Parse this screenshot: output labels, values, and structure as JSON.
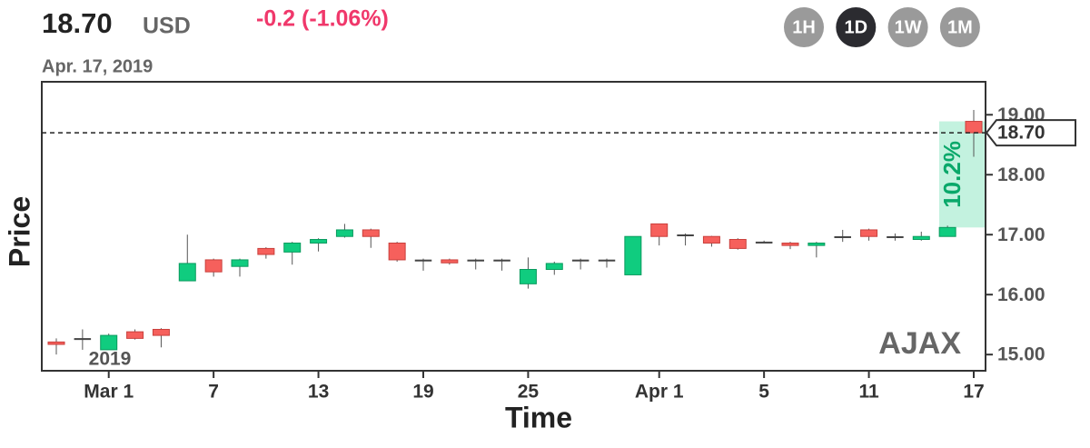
{
  "header": {
    "price": "18.70",
    "currency": "USD",
    "change": "-0.2 (-1.06%)",
    "date": "Apr. 17, 2019",
    "buttons": [
      "1H",
      "1D",
      "1W",
      "1M"
    ],
    "active_button": "1D"
  },
  "chart_data": {
    "type": "candlestick",
    "y_label": "Price",
    "x_label": "Time",
    "watermark": "AJAX",
    "year_label": "2019",
    "categories": [
      null,
      null,
      "Mar 1",
      null,
      null,
      null,
      "7",
      null,
      null,
      null,
      "13",
      null,
      null,
      null,
      "19",
      null,
      null,
      null,
      "25",
      null,
      null,
      null,
      null,
      "Apr 1",
      null,
      null,
      null,
      "5",
      null,
      null,
      null,
      "11",
      null,
      null,
      null,
      "17"
    ],
    "open": [
      15.21,
      15.27,
      15.08,
      15.38,
      15.42,
      16.23,
      16.58,
      16.47,
      16.77,
      16.71,
      16.86,
      16.97,
      17.08,
      16.86,
      16.58,
      16.58,
      16.58,
      16.58,
      16.18,
      16.42,
      16.58,
      16.58,
      16.33,
      17.18,
      17.0,
      16.97,
      16.92,
      16.88,
      16.86,
      16.82,
      16.97,
      17.08,
      16.97,
      16.92,
      16.97,
      18.89
    ],
    "high": [
      15.27,
      15.42,
      15.35,
      15.42,
      15.44,
      17.0,
      16.6,
      16.6,
      16.79,
      16.88,
      16.94,
      17.18,
      17.1,
      16.88,
      16.6,
      16.6,
      16.6,
      16.6,
      16.62,
      16.55,
      16.6,
      16.6,
      16.97,
      17.18,
      17.02,
      16.98,
      16.94,
      16.9,
      16.88,
      16.88,
      17.08,
      17.1,
      17.02,
      17.05,
      17.15,
      19.08
    ],
    "low": [
      15.0,
      15.08,
      15.08,
      15.25,
      15.12,
      16.23,
      16.3,
      16.3,
      16.6,
      16.5,
      16.72,
      16.95,
      16.78,
      16.55,
      16.4,
      16.5,
      16.42,
      16.4,
      16.1,
      16.33,
      16.42,
      16.45,
      16.33,
      16.82,
      16.82,
      16.8,
      16.75,
      16.86,
      16.76,
      16.62,
      16.88,
      16.9,
      16.9,
      16.9,
      16.97,
      18.3
    ],
    "close": [
      15.17,
      15.27,
      15.32,
      15.27,
      15.32,
      16.52,
      16.38,
      16.58,
      16.67,
      16.86,
      16.92,
      17.08,
      16.97,
      16.58,
      16.58,
      16.53,
      16.58,
      16.58,
      16.42,
      16.52,
      16.58,
      16.58,
      16.97,
      16.97,
      17.0,
      16.86,
      16.77,
      16.88,
      16.82,
      16.86,
      16.97,
      16.97,
      16.97,
      16.97,
      17.12,
      18.7
    ],
    "up_color": "#10cc7f",
    "down_color": "#f6605c",
    "ylim": [
      14.73,
      19.55
    ],
    "yticks": [
      {
        "value": 15,
        "label": "15.00"
      },
      {
        "value": 16,
        "label": "16.00"
      },
      {
        "value": 17,
        "label": "17.00"
      },
      {
        "value": 18,
        "label": "18.00"
      },
      {
        "value": 19,
        "label": "19.00"
      }
    ],
    "current_price": {
      "value": 18.7,
      "label": "18.70"
    },
    "annotation": "10.2%"
  }
}
